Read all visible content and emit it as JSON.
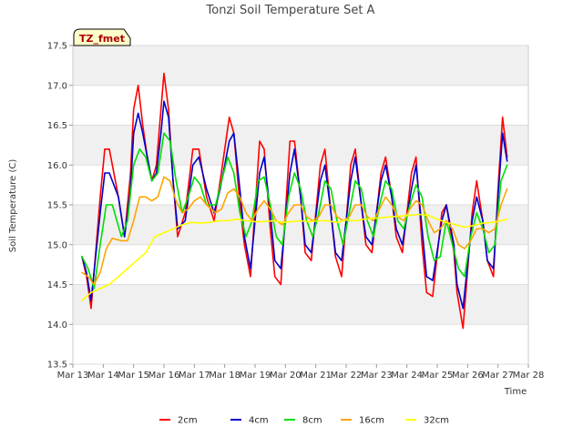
{
  "chart_data": {
    "type": "line",
    "title": "Tonzi Soil Temperature Set A",
    "xlabel": "Time",
    "ylabel": "Soil Temperature (C)",
    "annotation": "TZ_fmet",
    "ylim": [
      13.5,
      17.5
    ],
    "xlim": [
      13,
      28
    ],
    "yticks": [
      13.5,
      14.0,
      14.5,
      15.0,
      15.5,
      16.0,
      16.5,
      17.0,
      17.5
    ],
    "xticks": [
      {
        "value": 13,
        "label": "Mar 13"
      },
      {
        "value": 14,
        "label": "Mar 14"
      },
      {
        "value": 15,
        "label": "Mar 15"
      },
      {
        "value": 16,
        "label": "Mar 16"
      },
      {
        "value": 17,
        "label": "Mar 17"
      },
      {
        "value": 18,
        "label": "Mar 18"
      },
      {
        "value": 19,
        "label": "Mar 19"
      },
      {
        "value": 20,
        "label": "Mar 20"
      },
      {
        "value": 21,
        "label": "Mar 21"
      },
      {
        "value": 22,
        "label": "Mar 22"
      },
      {
        "value": 23,
        "label": "Mar 23"
      },
      {
        "value": 24,
        "label": "Mar 24"
      },
      {
        "value": 25,
        "label": "Mar 25"
      },
      {
        "value": 26,
        "label": "Mar 26"
      },
      {
        "value": 27,
        "label": "Mar 27"
      },
      {
        "value": 28,
        "label": "Mar 28"
      }
    ],
    "grid": "horizontal",
    "legend_position": "bottom",
    "x_unit": "day of March",
    "series": [
      {
        "name": "2cm",
        "color": "#ff0000",
        "x": [
          13.3,
          13.45,
          13.6,
          13.9,
          14.05,
          14.2,
          14.5,
          14.7,
          14.9,
          15.0,
          15.15,
          15.3,
          15.45,
          15.6,
          15.75,
          15.9,
          16.0,
          16.15,
          16.3,
          16.45,
          16.7,
          16.95,
          17.15,
          17.4,
          17.65,
          17.85,
          18.15,
          18.3,
          18.5,
          18.65,
          18.85,
          19.15,
          19.3,
          19.5,
          19.65,
          19.85,
          20.15,
          20.3,
          20.5,
          20.65,
          20.85,
          21.15,
          21.3,
          21.5,
          21.65,
          21.85,
          22.15,
          22.3,
          22.5,
          22.65,
          22.85,
          23.15,
          23.3,
          23.5,
          23.65,
          23.85,
          24.15,
          24.3,
          24.5,
          24.65,
          24.85,
          25.15,
          25.3,
          25.55,
          25.65,
          25.85,
          26.15,
          26.3,
          26.5,
          26.65,
          26.85,
          27.0,
          27.15
        ],
        "y": [
          14.85,
          14.6,
          14.2,
          15.6,
          16.2,
          16.2,
          15.6,
          15.1,
          15.9,
          16.7,
          17.0,
          16.5,
          16.1,
          15.8,
          16.0,
          16.7,
          17.15,
          16.7,
          15.8,
          15.1,
          15.4,
          16.2,
          16.2,
          15.6,
          15.3,
          15.8,
          16.6,
          16.4,
          15.5,
          15.0,
          14.6,
          16.3,
          16.2,
          15.2,
          14.6,
          14.5,
          16.3,
          16.3,
          15.6,
          14.9,
          14.8,
          16.0,
          16.2,
          15.4,
          14.85,
          14.6,
          16.0,
          16.2,
          15.5,
          15.0,
          14.9,
          15.9,
          16.1,
          15.6,
          15.1,
          14.9,
          15.9,
          16.1,
          15.0,
          14.4,
          14.35,
          15.4,
          15.5,
          14.9,
          14.4,
          13.95,
          15.4,
          15.8,
          15.3,
          14.8,
          14.6,
          15.7,
          16.6
        ],
        "end": [
          27.3,
          16.1
        ]
      },
      {
        "name": "4cm",
        "color": "#0000cc",
        "x": [
          13.3,
          13.45,
          13.6,
          13.9,
          14.05,
          14.2,
          14.5,
          14.7,
          14.9,
          15.0,
          15.15,
          15.3,
          15.45,
          15.6,
          15.75,
          15.9,
          16.0,
          16.15,
          16.3,
          16.45,
          16.7,
          16.95,
          17.15,
          17.4,
          17.65,
          17.85,
          18.15,
          18.3,
          18.5,
          18.65,
          18.85,
          19.15,
          19.3,
          19.5,
          19.65,
          19.85,
          20.15,
          20.3,
          20.5,
          20.65,
          20.85,
          21.15,
          21.3,
          21.5,
          21.65,
          21.85,
          22.15,
          22.3,
          22.5,
          22.65,
          22.85,
          23.15,
          23.3,
          23.5,
          23.65,
          23.85,
          24.15,
          24.3,
          24.5,
          24.65,
          24.85,
          25.15,
          25.3,
          25.55,
          25.65,
          25.85,
          26.15,
          26.3,
          26.5,
          26.65,
          26.85,
          27.0,
          27.15
        ],
        "y": [
          14.85,
          14.65,
          14.3,
          15.4,
          15.9,
          15.9,
          15.6,
          15.1,
          15.7,
          16.4,
          16.65,
          16.4,
          16.1,
          15.8,
          15.9,
          16.4,
          16.8,
          16.6,
          15.8,
          15.2,
          15.3,
          16.0,
          16.1,
          15.7,
          15.4,
          15.7,
          16.3,
          16.4,
          15.7,
          15.1,
          14.7,
          15.9,
          16.1,
          15.4,
          14.8,
          14.7,
          15.9,
          16.2,
          15.6,
          15.0,
          14.9,
          15.8,
          16.0,
          15.4,
          14.9,
          14.8,
          15.8,
          16.1,
          15.5,
          15.1,
          15.0,
          15.8,
          16.0,
          15.6,
          15.2,
          15.0,
          15.7,
          16.0,
          15.2,
          14.6,
          14.55,
          15.3,
          15.5,
          15.0,
          14.5,
          14.2,
          15.3,
          15.6,
          15.3,
          14.8,
          14.7,
          15.6,
          16.4
        ],
        "end": [
          27.3,
          16.05
        ]
      },
      {
        "name": "8cm",
        "color": "#00e000",
        "x": [
          13.3,
          13.5,
          13.7,
          13.9,
          14.1,
          14.3,
          14.6,
          14.8,
          15.0,
          15.2,
          15.4,
          15.6,
          15.8,
          16.0,
          16.2,
          16.4,
          16.6,
          16.8,
          17.0,
          17.2,
          17.4,
          17.7,
          17.9,
          18.1,
          18.3,
          18.5,
          18.7,
          18.9,
          19.1,
          19.3,
          19.5,
          19.7,
          19.9,
          20.1,
          20.3,
          20.5,
          20.7,
          20.9,
          21.1,
          21.3,
          21.5,
          21.7,
          21.9,
          22.1,
          22.3,
          22.5,
          22.7,
          22.9,
          23.1,
          23.3,
          23.5,
          23.7,
          23.9,
          24.1,
          24.3,
          24.5,
          24.7,
          24.9,
          25.1,
          25.3,
          25.5,
          25.7,
          25.9,
          26.1,
          26.3,
          26.5,
          26.7,
          26.9,
          27.1
        ],
        "y": [
          14.85,
          14.7,
          14.45,
          15.0,
          15.5,
          15.5,
          15.1,
          15.3,
          16.0,
          16.2,
          16.1,
          15.8,
          15.9,
          16.4,
          16.3,
          15.8,
          15.4,
          15.6,
          15.85,
          15.75,
          15.5,
          15.5,
          15.8,
          16.1,
          15.9,
          15.4,
          15.1,
          15.3,
          15.8,
          15.85,
          15.5,
          15.1,
          15.0,
          15.6,
          15.9,
          15.7,
          15.3,
          15.1,
          15.4,
          15.8,
          15.7,
          15.3,
          15.0,
          15.4,
          15.8,
          15.7,
          15.3,
          15.1,
          15.5,
          15.8,
          15.7,
          15.3,
          15.2,
          15.5,
          15.75,
          15.6,
          15.1,
          14.8,
          14.85,
          15.3,
          15.0,
          14.7,
          14.6,
          15.1,
          15.4,
          15.2,
          14.9,
          15.0,
          15.8
        ],
        "end": [
          27.3,
          16.0
        ]
      },
      {
        "name": "16cm",
        "color": "#ffa500",
        "x": [
          13.3,
          13.5,
          13.7,
          13.9,
          14.1,
          14.3,
          14.6,
          14.8,
          15.0,
          15.2,
          15.4,
          15.6,
          15.8,
          16.0,
          16.2,
          16.4,
          16.6,
          16.8,
          17.0,
          17.2,
          17.4,
          17.7,
          17.9,
          18.1,
          18.3,
          18.5,
          18.7,
          18.9,
          19.1,
          19.3,
          19.5,
          19.7,
          19.9,
          20.1,
          20.3,
          20.5,
          20.7,
          20.9,
          21.1,
          21.3,
          21.5,
          21.7,
          21.9,
          22.1,
          22.3,
          22.5,
          22.7,
          22.9,
          23.1,
          23.3,
          23.5,
          23.7,
          23.9,
          24.1,
          24.3,
          24.5,
          24.7,
          24.9,
          25.1,
          25.3,
          25.5,
          25.7,
          25.9,
          26.1,
          26.3,
          26.5,
          26.7,
          26.9,
          27.1
        ],
        "y": [
          14.65,
          14.6,
          14.5,
          14.65,
          14.95,
          15.08,
          15.05,
          15.05,
          15.3,
          15.6,
          15.6,
          15.55,
          15.6,
          15.85,
          15.8,
          15.55,
          15.4,
          15.45,
          15.55,
          15.6,
          15.5,
          15.4,
          15.45,
          15.65,
          15.7,
          15.6,
          15.4,
          15.3,
          15.45,
          15.55,
          15.45,
          15.3,
          15.25,
          15.4,
          15.5,
          15.5,
          15.35,
          15.3,
          15.35,
          15.5,
          15.5,
          15.35,
          15.3,
          15.35,
          15.5,
          15.5,
          15.35,
          15.3,
          15.45,
          15.6,
          15.5,
          15.35,
          15.3,
          15.45,
          15.55,
          15.5,
          15.3,
          15.15,
          15.2,
          15.3,
          15.2,
          15.0,
          14.95,
          15.05,
          15.2,
          15.2,
          15.15,
          15.2,
          15.5
        ],
        "end": [
          27.3,
          15.7
        ]
      },
      {
        "name": "32cm",
        "color": "#ffff00",
        "x": [
          13.3,
          13.6,
          13.9,
          14.2,
          14.5,
          14.8,
          15.1,
          15.4,
          15.7,
          16.0,
          16.3,
          16.6,
          16.9,
          17.2,
          17.5,
          17.8,
          18.1,
          18.4,
          18.7,
          19.0,
          19.3,
          19.6,
          19.9,
          20.2,
          20.5,
          20.8,
          21.1,
          21.4,
          21.7,
          22.0,
          22.3,
          22.6,
          22.9,
          23.2,
          23.5,
          23.8,
          24.1,
          24.4,
          24.7,
          25.0,
          25.3,
          25.6,
          25.9,
          26.2,
          26.5,
          26.8,
          27.1
        ],
        "y": [
          14.3,
          14.4,
          14.45,
          14.5,
          14.6,
          14.7,
          14.8,
          14.9,
          15.1,
          15.15,
          15.2,
          15.25,
          15.28,
          15.27,
          15.28,
          15.3,
          15.3,
          15.32,
          15.3,
          15.29,
          15.29,
          15.3,
          15.28,
          15.29,
          15.3,
          15.29,
          15.3,
          15.3,
          15.28,
          15.31,
          15.3,
          15.32,
          15.33,
          15.34,
          15.35,
          15.36,
          15.37,
          15.38,
          15.37,
          15.32,
          15.28,
          15.25,
          15.22,
          15.24,
          15.27,
          15.28,
          15.3
        ],
        "end": [
          27.3,
          15.32
        ]
      }
    ]
  }
}
